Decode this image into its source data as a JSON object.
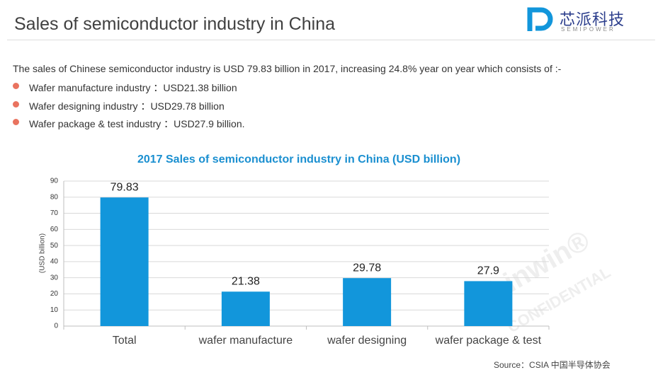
{
  "header": {
    "title": "Sales of semiconductor industry in China",
    "logo_cn": "芯派科技",
    "logo_en": "SEMIPOWER"
  },
  "intro": "The sales of Chinese semiconductor industry is USD 79.83 billion in 2017, increasing 24.8% year on year which consists of :-",
  "bullets": [
    "Wafer manufacture industry  ：USD21.38 billion",
    "Wafer designing industry  ：USD29.78 billion",
    "Wafer package & test industry  ：USD27.9 billion."
  ],
  "watermark": [
    "Chinwin®",
    "CONFIDENTIAL"
  ],
  "chart_data": {
    "type": "bar",
    "title": "2017 Sales of semiconductor industry in China (USD billion)",
    "y_label": "(USD billion)",
    "categories": [
      "Total",
      "wafer manufacture",
      "wafer designing",
      "wafer package & test"
    ],
    "values": [
      79.83,
      21.38,
      29.78,
      27.9
    ],
    "color": "#1296db",
    "ylim": [
      0,
      90
    ],
    "yticks": [
      0,
      10,
      20,
      30,
      40,
      50,
      60,
      70,
      80,
      90
    ],
    "grid": true
  },
  "source": "Source：CSIA 中国半导体协会"
}
